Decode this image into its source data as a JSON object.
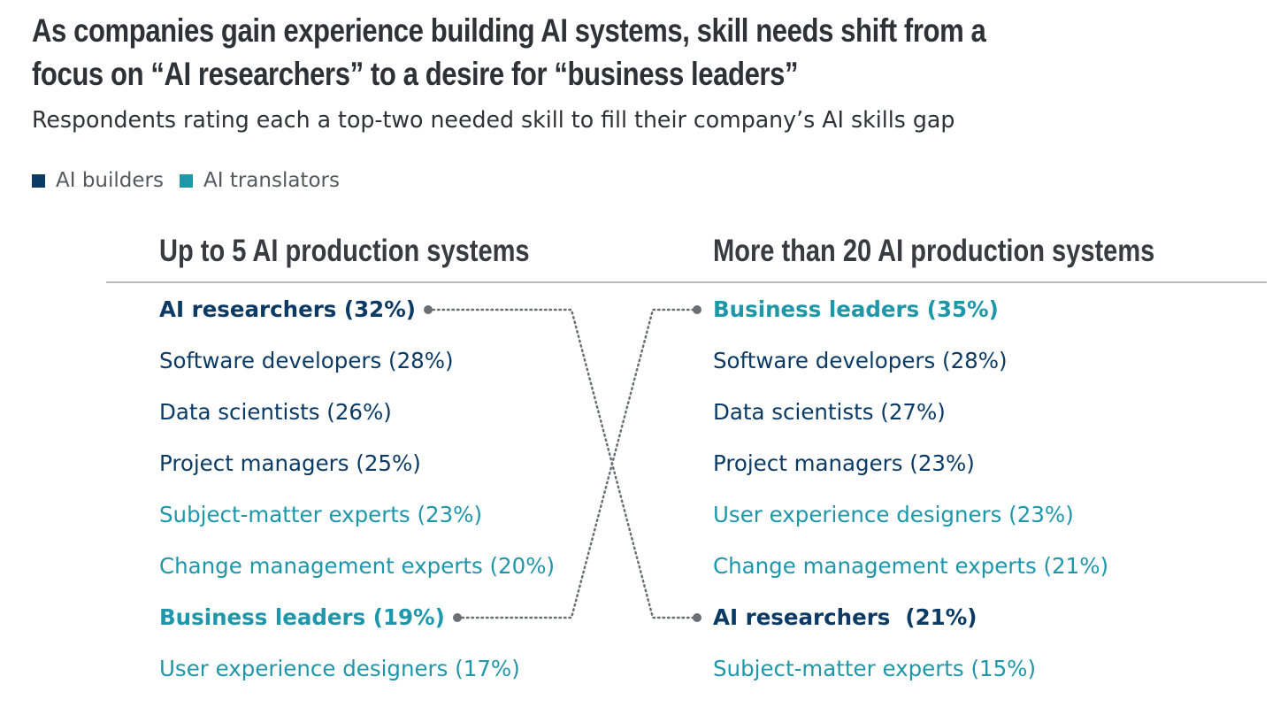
{
  "title_lines": [
    "As companies gain experience building AI systems, skill needs shift from a",
    "focus on “AI researchers” to a desire for “business leaders”"
  ],
  "subtitle": "Respondents rating each a top-two needed skill to fill their company’s AI skills gap",
  "colors": {
    "builder": "#0b3a64",
    "translator": "#1e97aa",
    "connector": "#6b6f74"
  },
  "legend": [
    {
      "label": "AI builders",
      "group": "builder"
    },
    {
      "label": "AI translators",
      "group": "translator"
    }
  ],
  "chart_data": {
    "type": "table",
    "columns": [
      {
        "header": "Up to 5 AI production systems",
        "items": [
          {
            "skill": "AI researchers",
            "value": 32,
            "text": "AI researchers (32%)",
            "group": "builder",
            "highlight": true
          },
          {
            "skill": "Software developers",
            "value": 28,
            "text": "Software developers (28%)",
            "group": "builder",
            "highlight": false
          },
          {
            "skill": "Data scientists",
            "value": 26,
            "text": "Data scientists (26%)",
            "group": "builder",
            "highlight": false
          },
          {
            "skill": "Project managers",
            "value": 25,
            "text": "Project managers (25%)",
            "group": "builder",
            "highlight": false
          },
          {
            "skill": "Subject-matter experts",
            "value": 23,
            "text": "Subject-matter experts (23%)",
            "group": "translator",
            "highlight": false
          },
          {
            "skill": "Change management experts",
            "value": 20,
            "text": "Change management experts (20%)",
            "group": "translator",
            "highlight": false
          },
          {
            "skill": "Business leaders",
            "value": 19,
            "text": "Business leaders (19%)",
            "group": "translator",
            "highlight": true
          },
          {
            "skill": "User experience designers",
            "value": 17,
            "text": "User experience designers (17%)",
            "group": "translator",
            "highlight": false
          }
        ]
      },
      {
        "header": "More than 20 AI production systems",
        "items": [
          {
            "skill": "Business leaders",
            "value": 35,
            "text": "Business leaders (35%)",
            "group": "translator",
            "highlight": true
          },
          {
            "skill": "Software developers",
            "value": 28,
            "text": "Software developers (28%)",
            "group": "builder",
            "highlight": false
          },
          {
            "skill": "Data scientists",
            "value": 27,
            "text": "Data scientists (27%)",
            "group": "builder",
            "highlight": false
          },
          {
            "skill": "Project managers",
            "value": 23,
            "text": "Project managers (23%)",
            "group": "builder",
            "highlight": false
          },
          {
            "skill": "User experience designers",
            "value": 23,
            "text": "User experience designers (23%)",
            "group": "translator",
            "highlight": false
          },
          {
            "skill": "Change management experts",
            "value": 21,
            "text": "Change management experts (21%)",
            "group": "translator",
            "highlight": false
          },
          {
            "skill": "AI researchers",
            "value": 21,
            "text": "AI researchers  (21%)",
            "group": "builder",
            "highlight": true
          },
          {
            "skill": "Subject-matter experts",
            "value": 15,
            "text": "Subject-matter experts (15%)",
            "group": "translator",
            "highlight": false
          }
        ]
      }
    ],
    "connections": [
      {
        "skill": "AI researchers",
        "from_rank": 1,
        "to_rank": 7
      },
      {
        "skill": "Business leaders",
        "from_rank": 7,
        "to_rank": 1
      }
    ]
  }
}
